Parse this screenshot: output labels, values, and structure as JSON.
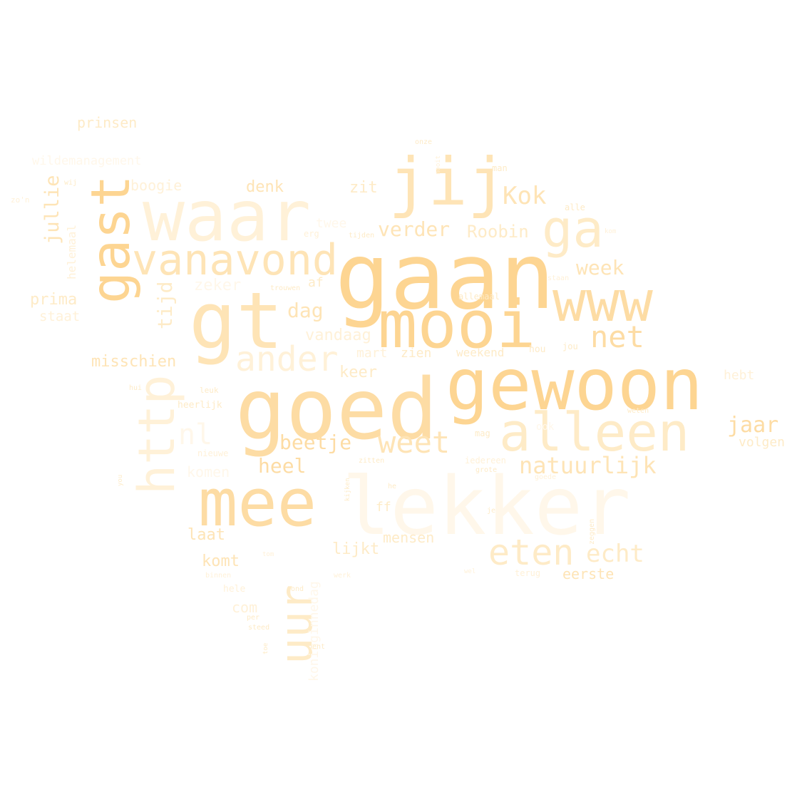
{
  "palette": {
    "c1": "#fdd592",
    "c2": "#fddca4",
    "c3": "#fee4b6",
    "c4": "#feebc7",
    "c5": "#fff1d8",
    "c6": "#fff7ea"
  },
  "words": [
    {
      "text": "gaan",
      "color": "c1"
    },
    {
      "text": "goed",
      "color": "c2"
    },
    {
      "text": "gewoon",
      "color": "c1"
    },
    {
      "text": "mooi",
      "color": "c1"
    },
    {
      "text": "mee",
      "color": "c2"
    },
    {
      "text": "lekker",
      "color": "c6"
    },
    {
      "text": "gt",
      "color": "c3"
    },
    {
      "text": "gast",
      "color": "c1"
    },
    {
      "text": "waar",
      "color": "c5"
    },
    {
      "text": "jij",
      "color": "c3"
    },
    {
      "text": "www",
      "color": "c2"
    },
    {
      "text": "alleen",
      "color": "c4"
    },
    {
      "text": "ga",
      "color": "c4"
    },
    {
      "text": "http",
      "color": "c5"
    },
    {
      "text": "vanavond",
      "color": "c3"
    },
    {
      "text": "uur",
      "color": "c4"
    },
    {
      "text": "ander",
      "color": "c5"
    },
    {
      "text": "eten",
      "color": "c4"
    },
    {
      "text": "weet",
      "color": "c3"
    },
    {
      "text": "net",
      "color": "c2"
    },
    {
      "text": "echt",
      "color": "c4"
    },
    {
      "text": "natuurlijk",
      "color": "c3"
    },
    {
      "text": "beetje",
      "color": "c2"
    },
    {
      "text": "heel",
      "color": "c2"
    },
    {
      "text": "jaar",
      "color": "c2"
    },
    {
      "text": "Kok",
      "color": "c3"
    },
    {
      "text": "verder",
      "color": "c3"
    },
    {
      "text": "week",
      "color": "c3"
    },
    {
      "text": "dag",
      "color": "c3"
    },
    {
      "text": "jullie",
      "color": "c3"
    },
    {
      "text": "tijd",
      "color": "c4"
    },
    {
      "text": "nl",
      "color": "c6"
    },
    {
      "text": "Roobin",
      "color": "c4"
    },
    {
      "text": "denk",
      "color": "c3"
    },
    {
      "text": "zit",
      "color": "c4"
    },
    {
      "text": "misschien",
      "color": "c3"
    },
    {
      "text": "prima",
      "color": "c4"
    },
    {
      "text": "staat",
      "color": "c5"
    },
    {
      "text": "zeker",
      "color": "c6"
    },
    {
      "text": "vandaag",
      "color": "c5"
    },
    {
      "text": "mart",
      "color": "c5"
    },
    {
      "text": "zien",
      "color": "c4"
    },
    {
      "text": "weekend",
      "color": "c4"
    },
    {
      "text": "keer",
      "color": "c4"
    },
    {
      "text": "laat",
      "color": "c3"
    },
    {
      "text": "komt",
      "color": "c3"
    },
    {
      "text": "lijkt",
      "color": "c4"
    },
    {
      "text": "mensen",
      "color": "c4"
    },
    {
      "text": "eerste",
      "color": "c3"
    },
    {
      "text": "volgen",
      "color": "c4"
    },
    {
      "text": "hebt",
      "color": "c5"
    },
    {
      "text": "prinsen",
      "color": "c4"
    },
    {
      "text": "boogie",
      "color": "c5"
    },
    {
      "text": "wildemanagement",
      "color": "c6"
    },
    {
      "text": "helemaal",
      "color": "c5"
    },
    {
      "text": "af",
      "color": "c4"
    },
    {
      "text": "twee",
      "color": "c6"
    },
    {
      "text": "komen",
      "color": "c6"
    },
    {
      "text": "com",
      "color": "c5"
    },
    {
      "text": "ff",
      "color": "c4"
    },
    {
      "text": "koninginnedag",
      "color": "c6"
    },
    {
      "text": "heerlijk",
      "color": "c4"
    },
    {
      "text": "nieuwe",
      "color": "c5"
    },
    {
      "text": "hele",
      "color": "c5"
    },
    {
      "text": "zeggen",
      "color": "c4"
    },
    {
      "text": "allemaal",
      "color": "c4"
    },
    {
      "text": "erg",
      "color": "c5"
    },
    {
      "text": "man",
      "color": "c4"
    },
    {
      "text": "alle",
      "color": "c4"
    },
    {
      "text": "onze",
      "color": "c4"
    },
    {
      "text": "nooit",
      "color": "c5"
    },
    {
      "text": "tijden",
      "color": "c4"
    },
    {
      "text": "trouwen",
      "color": "c4"
    },
    {
      "text": "staan",
      "color": "c5"
    },
    {
      "text": "kom",
      "color": "c5"
    },
    {
      "text": "jou",
      "color": "c4"
    },
    {
      "text": "hou",
      "color": "c4"
    },
    {
      "text": "leuk",
      "color": "c4"
    },
    {
      "text": "hui",
      "color": "c4"
    },
    {
      "text": "mag",
      "color": "c4"
    },
    {
      "text": "iedereen",
      "color": "c5"
    },
    {
      "text": "grote",
      "color": "c4"
    },
    {
      "text": "goede",
      "color": "c5"
    },
    {
      "text": "zitten",
      "color": "c4"
    },
    {
      "text": "he",
      "color": "c4"
    },
    {
      "text": "kijken",
      "color": "c4"
    },
    {
      "text": "je",
      "color": "c4"
    },
    {
      "text": "weten",
      "color": "c4"
    },
    {
      "text": "wij",
      "color": "c4"
    },
    {
      "text": "zo'n",
      "color": "c5"
    },
    {
      "text": "you",
      "color": "c4"
    },
    {
      "text": "terug",
      "color": "c5"
    },
    {
      "text": "wel",
      "color": "c5"
    },
    {
      "text": "binnen",
      "color": "c5"
    },
    {
      "text": "werk",
      "color": "c5"
    },
    {
      "text": "rond",
      "color": "c4"
    },
    {
      "text": "per",
      "color": "c4"
    },
    {
      "text": "steed",
      "color": "c4"
    },
    {
      "text": "toe",
      "color": "c4"
    },
    {
      "text": "bent",
      "color": "c4"
    },
    {
      "text": "tom",
      "color": "c5"
    },
    {
      "text": "ook",
      "color": "c6"
    }
  ]
}
